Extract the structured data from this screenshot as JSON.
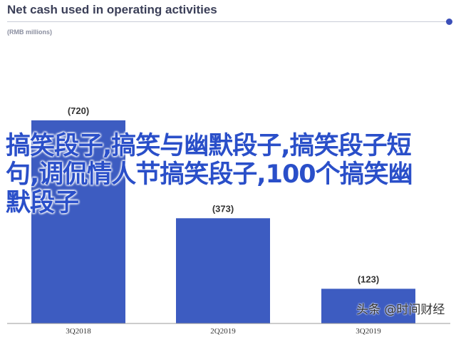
{
  "header": {
    "title": "Net cash used in operating activities",
    "subtitle": "(RMB millions)"
  },
  "overlay_text": "搞笑段子,搞笑与幽默段子,搞笑段子短句,调侃情人节搞笑段子,100个搞笑幽默段子",
  "watermark": "头条 @时间财经",
  "colors": {
    "bar": "#3d5cc1",
    "title": "#3b3f58",
    "accent_dot": "#3b4fb8",
    "overlay": "#2a4fc9"
  },
  "chart_data": {
    "type": "bar",
    "title": "Net cash used in operating activities",
    "subtitle": "(RMB millions)",
    "categories": [
      "3Q2018",
      "2Q2019",
      "3Q2019"
    ],
    "values": [
      720,
      373,
      123
    ],
    "value_labels": [
      "(720)",
      "(373)",
      "(123)"
    ],
    "ylim": [
      0,
      1000
    ],
    "grid": false,
    "legend": "none"
  }
}
